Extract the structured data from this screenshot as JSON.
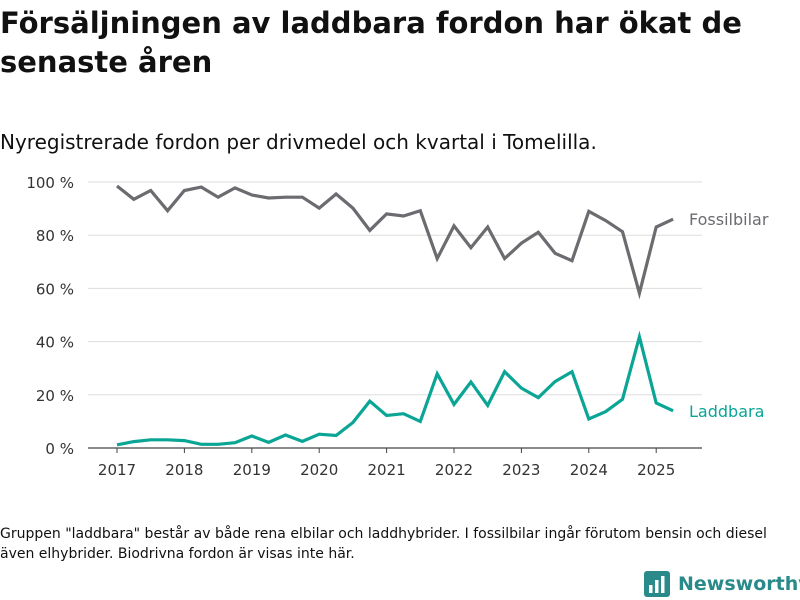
{
  "title": "Försäljningen av laddbara fordon har ökat de senaste åren",
  "subtitle": "Nyregistrerade fordon per drivmedel och kvartal i Tomelilla.",
  "note": "Gruppen \"laddbara\" består av både rena elbilar och laddhybrider. I fossilbilar ingår förutom bensin och diesel även elhybrider. Biodrivna fordon är visas inte här.",
  "brand": "Newsworthy",
  "colors": {
    "fossil": "#6b6b70",
    "laddbara": "#0aa595",
    "grid": "#dddddd",
    "brand": "#2a8a8a"
  },
  "chart_data": {
    "type": "line",
    "x_unit": "quarter",
    "x": [
      "2017-Q1",
      "2017-Q2",
      "2017-Q3",
      "2017-Q4",
      "2018-Q1",
      "2018-Q2",
      "2018-Q3",
      "2018-Q4",
      "2019-Q1",
      "2019-Q2",
      "2019-Q3",
      "2019-Q4",
      "2020-Q1",
      "2020-Q2",
      "2020-Q3",
      "2020-Q4",
      "2021-Q1",
      "2021-Q2",
      "2021-Q3",
      "2021-Q4",
      "2022-Q1",
      "2022-Q2",
      "2022-Q3",
      "2022-Q4",
      "2023-Q1",
      "2023-Q2",
      "2023-Q3",
      "2023-Q4",
      "2024-Q1",
      "2024-Q2",
      "2024-Q3",
      "2024-Q4",
      "2025-Q1",
      "2025-Q2"
    ],
    "x_ticks": [
      "2017",
      "2018",
      "2019",
      "2020",
      "2021",
      "2022",
      "2023",
      "2024",
      "2025"
    ],
    "y_ticks": [
      "0 %",
      "20 %",
      "40 %",
      "60 %",
      "80 %",
      "100 %"
    ],
    "ylim": [
      0,
      100
    ],
    "grid": true,
    "series": [
      {
        "name": "Fossilbilar",
        "color": "#6b6b70",
        "values": [
          98.5,
          93.5,
          96.8,
          89.2,
          96.8,
          98.1,
          94.3,
          97.8,
          95.1,
          94.0,
          94.3,
          94.3,
          90.2,
          95.5,
          90.2,
          81.8,
          88.0,
          87.2,
          89.2,
          71.2,
          83.5,
          75.3,
          83.1,
          71.2,
          77.0,
          81.1,
          73.2,
          70.4,
          89.0,
          85.5,
          81.3,
          58.2,
          83.1,
          86.0
        ]
      },
      {
        "name": "Laddbara",
        "color": "#0aa595",
        "values": [
          1.2,
          2.4,
          3.1,
          3.1,
          2.8,
          1.4,
          1.4,
          2.0,
          4.5,
          2.1,
          4.9,
          2.5,
          5.2,
          4.7,
          9.6,
          17.6,
          12.2,
          12.9,
          10.0,
          27.9,
          16.4,
          24.8,
          16.0,
          28.7,
          22.5,
          18.9,
          25.0,
          28.7,
          10.9,
          13.7,
          18.3,
          41.8,
          16.9,
          14.0
        ]
      }
    ]
  }
}
